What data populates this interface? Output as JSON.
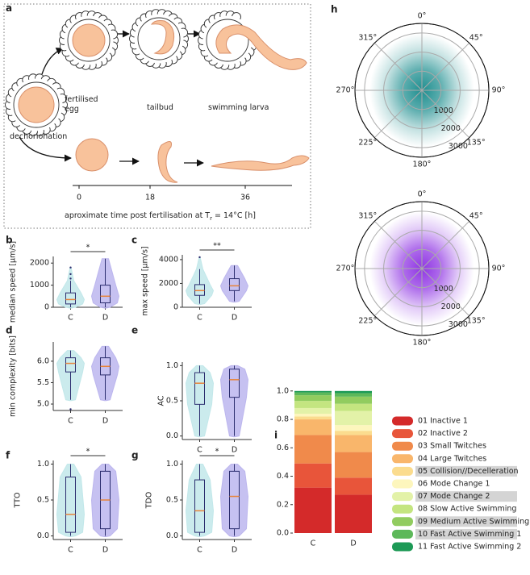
{
  "diagram": {
    "panel": "a",
    "stage_labels": [
      "fertilised egg",
      "tailbud",
      "swimming larva"
    ],
    "dechorionation": "dechorionation",
    "timeline_ticks": [
      "0",
      "18",
      "36"
    ],
    "caption_before": "aproximate time post fertilisation at T",
    "caption_sub": "r",
    "caption_after": " = 14°C  [h]"
  },
  "chart_data": [
    {
      "type": "violin",
      "panel": "b",
      "ylabel": "median speed [µm/s]",
      "categories": [
        "C",
        "D"
      ],
      "colors": [
        "#c2e8ea",
        "#bcb6ee"
      ],
      "ylim": [
        0,
        2300
      ],
      "yticks": [
        0,
        1000,
        2000
      ],
      "significance": "*",
      "boxes": [
        {
          "whisker_low": 0,
          "q1": 150,
          "median": 350,
          "q3": 650,
          "whisker_high": 1200,
          "outliers": [
            1300,
            1500,
            1800
          ]
        },
        {
          "whisker_low": 0,
          "q1": 200,
          "median": 500,
          "q3": 1000,
          "whisker_high": 2200,
          "outliers": []
        }
      ]
    },
    {
      "type": "violin",
      "panel": "c",
      "ylabel": "max speed [µm/s]",
      "categories": [
        "C",
        "D"
      ],
      "colors": [
        "#c2e8ea",
        "#bcb6ee"
      ],
      "ylim": [
        0,
        4400
      ],
      "yticks": [
        0,
        2000,
        4000
      ],
      "significance": "**",
      "boxes": [
        {
          "whisker_low": 300,
          "q1": 1000,
          "median": 1400,
          "q3": 1900,
          "whisker_high": 3200,
          "outliers": [
            4200
          ]
        },
        {
          "whisker_low": 500,
          "q1": 1400,
          "median": 1800,
          "q3": 2400,
          "whisker_high": 3500,
          "outliers": []
        }
      ]
    },
    {
      "type": "violin",
      "panel": "d",
      "ylabel": "min complexity [bits]",
      "categories": [
        "C",
        "D"
      ],
      "colors": [
        "#c2e8ea",
        "#bcb6ee"
      ],
      "ylim": [
        4.85,
        6.45
      ],
      "yticks": [
        {
          "value": 5,
          "label": "5.0"
        },
        5.5,
        {
          "value": 6,
          "label": "6.0"
        }
      ],
      "boxes": [
        {
          "whisker_low": 5.1,
          "q1": 5.75,
          "median": 5.95,
          "q3": 6.08,
          "whisker_high": 6.25,
          "outliers": [
            4.88
          ]
        },
        {
          "whisker_low": 5.1,
          "q1": 5.68,
          "median": 5.88,
          "q3": 6.08,
          "whisker_high": 6.35,
          "outliers": []
        }
      ]
    },
    {
      "type": "violin",
      "panel": "e",
      "ylabel": "AC",
      "categories": [
        "C",
        "D"
      ],
      "colors": [
        "#c2e8ea",
        "#bcb6ee"
      ],
      "ylim": [
        -0.05,
        1.05
      ],
      "yticks": [
        {
          "value": 0,
          "label": "0.0"
        },
        0.5,
        {
          "value": 1,
          "label": "1.0"
        }
      ],
      "boxes": [
        {
          "whisker_low": 0,
          "q1": 0.45,
          "median": 0.75,
          "q3": 0.9,
          "whisker_high": 1,
          "outliers": []
        },
        {
          "whisker_low": 0,
          "q1": 0.55,
          "median": 0.8,
          "q3": 0.95,
          "whisker_high": 1,
          "outliers": []
        }
      ]
    },
    {
      "type": "violin",
      "panel": "f",
      "ylabel": "TTO",
      "categories": [
        "C",
        "D"
      ],
      "colors": [
        "#c2e8ea",
        "#bcb6ee"
      ],
      "ylim": [
        -0.05,
        1.05
      ],
      "yticks": [
        {
          "value": 0,
          "label": "0.0"
        },
        0.5,
        {
          "value": 1,
          "label": "1.0"
        }
      ],
      "significance": "*",
      "boxes": [
        {
          "whisker_low": 0,
          "q1": 0.05,
          "median": 0.3,
          "q3": 0.82,
          "whisker_high": 1,
          "outliers": []
        },
        {
          "whisker_low": 0,
          "q1": 0.1,
          "median": 0.5,
          "q3": 0.9,
          "whisker_high": 1,
          "outliers": []
        }
      ]
    },
    {
      "type": "violin",
      "panel": "g",
      "ylabel": "TDO",
      "categories": [
        "C",
        "D"
      ],
      "colors": [
        "#c2e8ea",
        "#bcb6ee"
      ],
      "ylim": [
        -0.05,
        1.05
      ],
      "yticks": [
        {
          "value": 0,
          "label": "0.0"
        },
        0.5,
        {
          "value": 1,
          "label": "1.0"
        }
      ],
      "significance": "*",
      "boxes": [
        {
          "whisker_low": 0,
          "q1": 0.05,
          "median": 0.35,
          "q3": 0.78,
          "whisker_high": 1,
          "outliers": []
        },
        {
          "whisker_low": 0,
          "q1": 0.1,
          "median": 0.55,
          "q3": 0.9,
          "whisker_high": 1,
          "outliers": []
        }
      ]
    },
    {
      "type": "polar-scatter",
      "panel": "h",
      "color": "#13898a",
      "rlim": [
        0,
        3500
      ],
      "rticks": [
        1000,
        2000,
        3000
      ],
      "angle_ticks": [
        {
          "value": 0,
          "label": "0°"
        },
        {
          "value": 45,
          "label": "45°"
        },
        {
          "value": 90,
          "label": "90°"
        },
        {
          "value": 135,
          "label": "135°"
        },
        {
          "value": 180,
          "label": "180°"
        },
        {
          "value": 225,
          "label": "225°"
        },
        {
          "value": 270,
          "label": "270°"
        },
        {
          "value": 315,
          "label": "315°"
        }
      ]
    },
    {
      "type": "polar-scatter",
      "color": "#8a2be2",
      "rlim": [
        0,
        3500
      ],
      "rticks": [
        1000,
        2000,
        3000
      ],
      "angle_ticks": [
        {
          "value": 0,
          "label": "0°"
        },
        {
          "value": 45,
          "label": "45°"
        },
        {
          "value": 90,
          "label": "90°"
        },
        {
          "value": 135,
          "label": "135°"
        },
        {
          "value": 180,
          "label": "180°"
        },
        {
          "value": 225,
          "label": "225°"
        },
        {
          "value": 270,
          "label": "270°"
        },
        {
          "value": 315,
          "label": "315°"
        }
      ]
    },
    {
      "type": "stacked-bar",
      "panel": "i",
      "categories": [
        "C",
        "D"
      ],
      "ylim": [
        0,
        1.05
      ],
      "yticks": [
        {
          "value": 0,
          "label": "0.0"
        },
        0.2,
        0.4,
        0.6,
        0.8,
        {
          "value": 1,
          "label": "1.0"
        }
      ],
      "series": [
        {
          "name": "01 Inactive 1",
          "color": "#d42a2a",
          "values": [
            0.32,
            0.27
          ]
        },
        {
          "name": "02 Inactive 2",
          "color": "#e8553a",
          "values": [
            0.17,
            0.12
          ]
        },
        {
          "name": "03 Small Twitches",
          "color": "#f08a4b",
          "values": [
            0.2,
            0.18
          ]
        },
        {
          "name": "04 Large Twitches",
          "color": "#f9b66b",
          "values": [
            0.11,
            0.12
          ]
        },
        {
          "name": "05 Collision//Decelleration",
          "color": "#fbdc8e",
          "values": [
            0.02,
            0.03
          ],
          "highlight": true
        },
        {
          "name": "06 Mode Change 1",
          "color": "#fdf6bd",
          "values": [
            0.02,
            0.04
          ]
        },
        {
          "name": "07 Mode Change 2",
          "color": "#e3f2a8",
          "values": [
            0.04,
            0.1
          ],
          "highlight": true
        },
        {
          "name": "08 Slow Active Swimming",
          "color": "#c4e580",
          "values": [
            0.05,
            0.05
          ]
        },
        {
          "name": "09 Medium Active Swimming",
          "color": "#91cc5f",
          "values": [
            0.04,
            0.05
          ],
          "highlight": true
        },
        {
          "name": "10 Fast Active Swimming 1",
          "color": "#5db85a",
          "values": [
            0.02,
            0.025
          ],
          "highlight": true
        },
        {
          "name": "11 Fast Active Swimming 2",
          "color": "#1d9a56",
          "values": [
            0.01,
            0.015
          ]
        }
      ]
    }
  ]
}
